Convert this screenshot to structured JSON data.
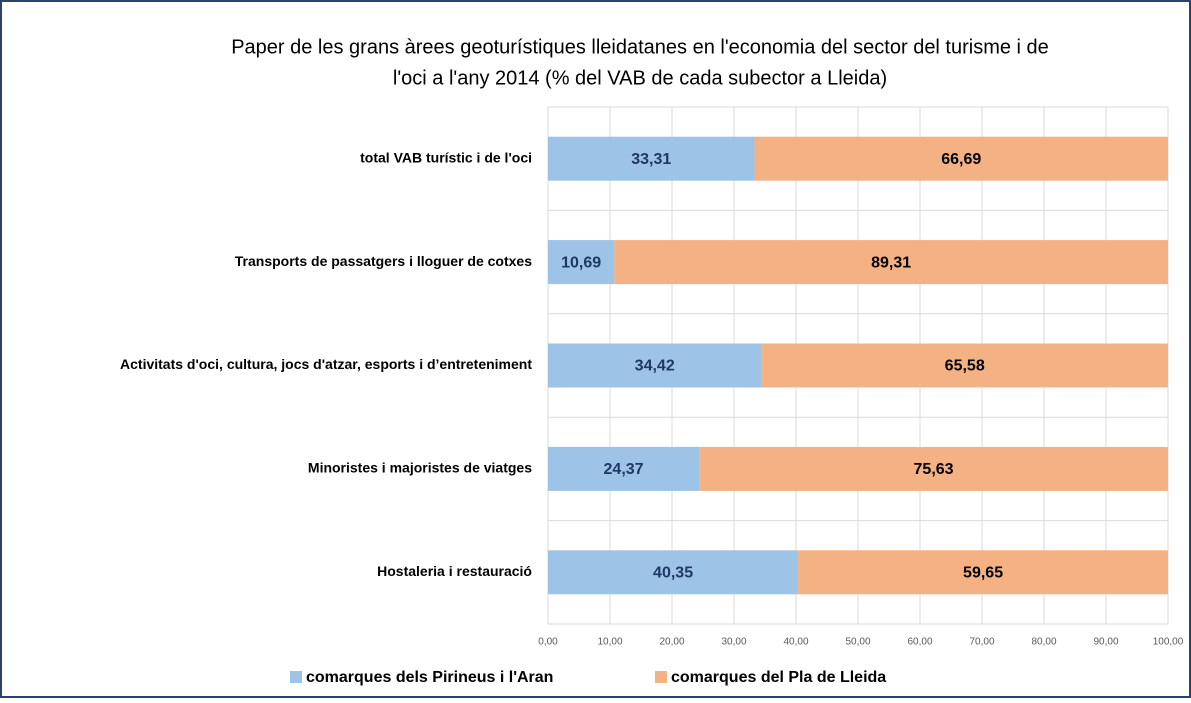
{
  "chart_data": {
    "type": "stacked_bar_horizontal",
    "title": [
      "Paper de les grans àrees geoturístiques lleidatanes en l'economia del sector del turisme i de",
      "l'oci a l'any 2014 (% del VAB de cada subector a Lleida)"
    ],
    "categories": [
      "total VAB turístic i de l'oci",
      "Transports de passatgers i lloguer de cotxes",
      "Activitats d'oci, cultura, jocs d'atzar, esports  i d’entreteniment",
      "Minoristes i majoristes de viatges",
      "Hostaleria i restauració"
    ],
    "series": [
      {
        "name": "comarques dels Pirineus i l'Aran",
        "color": "#9dc3e6",
        "label_color": "#1f3864",
        "values": [
          33.31,
          10.69,
          34.42,
          24.37,
          40.35
        ],
        "value_labels": [
          "33,31",
          "10,69",
          "34,42",
          "24,37",
          "40,35"
        ]
      },
      {
        "name": "comarques del Pla de Lleida",
        "color": "#f4b183",
        "label_color": "#000000",
        "values": [
          66.69,
          89.31,
          65.58,
          75.63,
          59.65
        ],
        "value_labels": [
          "66,69",
          "89,31",
          "65,58",
          "75,63",
          "59,65"
        ]
      }
    ],
    "xlim": [
      0,
      100
    ],
    "xticks": [
      {
        "value": 0,
        "label": "0,00"
      },
      {
        "value": 10,
        "label": "10,00"
      },
      {
        "value": 20,
        "label": "20,00"
      },
      {
        "value": 30,
        "label": "30,00"
      },
      {
        "value": 40,
        "label": "40,00"
      },
      {
        "value": 50,
        "label": "50,00"
      },
      {
        "value": 60,
        "label": "60,00"
      },
      {
        "value": 70,
        "label": "70,00"
      },
      {
        "value": 80,
        "label": "80,00"
      },
      {
        "value": 90,
        "label": "90,00"
      },
      {
        "value": 100,
        "label": "100,00"
      }
    ],
    "grid": true,
    "legend": "bottom"
  }
}
